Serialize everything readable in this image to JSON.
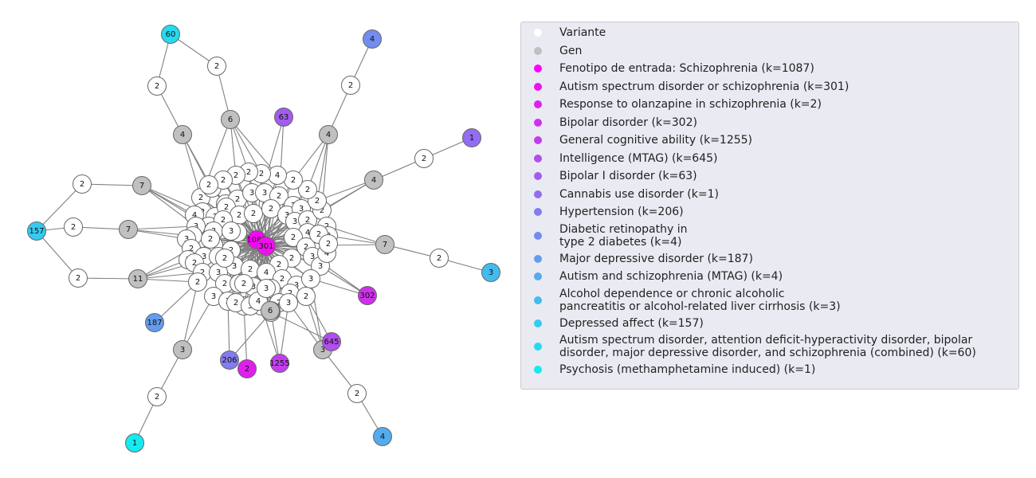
{
  "legend": {
    "items": [
      {
        "label": "Variante",
        "color": "#ffffff"
      },
      {
        "label": "Gen",
        "color": "#c0c0c0"
      },
      {
        "label": "Fenotipo de entrada: Schizophrenia (k=1087)",
        "color": "#ff00ff"
      },
      {
        "label": "Autism spectrum disorder or schizophrenia (k=301)",
        "color": "#ef10ef"
      },
      {
        "label": "Response to olanzapine in schizophrenia (k=2)",
        "color": "#e01fef"
      },
      {
        "label": "Bipolar disorder (k=302)",
        "color": "#d02fef"
      },
      {
        "label": "General cognitive ability (k=1255)",
        "color": "#c13eef"
      },
      {
        "label": "Intelligence (MTAG) (k=645)",
        "color": "#b14eef"
      },
      {
        "label": "Bipolar I disorder (k=63)",
        "color": "#a25def"
      },
      {
        "label": "Cannabis use disorder (k=1)",
        "color": "#926def"
      },
      {
        "label": "Hypertension (k=206)",
        "color": "#837cef"
      },
      {
        "label": "Diabetic retinopathy in\ntype 2 diabetes (k=4)",
        "color": "#738cef"
      },
      {
        "label": "Major depressive disorder (k=187)",
        "color": "#639cef"
      },
      {
        "label": "Autism and schizophrenia (MTAG) (k=4)",
        "color": "#54abef"
      },
      {
        "label": "Alcohol dependence or chronic alcoholic\npancreatitis or alcohol-related liver cirrhosis (k=3)",
        "color": "#44bbef"
      },
      {
        "label": "Depressed affect (k=157)",
        "color": "#35caef"
      },
      {
        "label": "Autism spectrum disorder, attention deficit-hyperactivity disorder, bipolar\ndisorder, major depressive disorder, and schizophrenia (combined) (k=60)",
        "color": "#25daef"
      },
      {
        "label": "Psychosis (methamphetamine induced) (k=1)",
        "color": "#15eaef"
      }
    ]
  },
  "graph": {
    "colors": {
      "variant": "#ffffff",
      "gene": "#c0c0c0",
      "schizophrenia": "#ff00ff",
      "asd_scz": "#ef10ef",
      "olanzapine": "#e01fef",
      "bipolar": "#d02fef",
      "cognitive": "#c13eef",
      "intelligence": "#b14eef",
      "bipolar1": "#a25def",
      "cannabis": "#926def",
      "hypertension": "#837cef",
      "retinopathy": "#738cef",
      "mdd": "#639cef",
      "autism_mtag": "#54abef",
      "alcohol": "#44bbef",
      "depressed": "#35caef",
      "cross_disorder": "#25daef",
      "psychosis": "#15eaef"
    },
    "cluster_labels": [
      "2",
      "2",
      "3",
      "2",
      "3",
      "3",
      "2",
      "2",
      "2",
      "2",
      "2",
      "2",
      "2",
      "2",
      "3",
      "3",
      "4",
      "2",
      "2",
      "2",
      "3",
      "2",
      "2",
      "2",
      "2",
      "2",
      "4",
      "2",
      "2",
      "2",
      "2",
      "2",
      "3",
      "3",
      "3",
      "3",
      "2",
      "2",
      "2",
      "4",
      "2",
      "3",
      "3",
      "2",
      "2",
      "2",
      "2",
      "3",
      "3",
      "4",
      "3",
      "2",
      "2",
      "3",
      "2",
      "3",
      "2",
      "4",
      "2",
      "3",
      "3",
      "2",
      "2",
      "2",
      "3",
      "2",
      "3",
      "3",
      "2",
      "2",
      "2",
      "3",
      "2",
      "2",
      "3",
      "2",
      "3",
      "2",
      "2",
      "3",
      "4",
      "3",
      "2",
      "2",
      "2",
      "2"
    ],
    "outer_variant_labels": [
      "2",
      "2",
      "2",
      "2",
      "2",
      "2",
      "2",
      "2",
      "2",
      "2",
      "2"
    ],
    "gene_labels": [
      "6",
      "4",
      "4",
      "4",
      "7",
      "7",
      "7",
      "11",
      "3",
      "3",
      "6"
    ],
    "phenotype_labels": [
      "1087",
      "301",
      "302",
      "1255",
      "645",
      "63",
      "1",
      "206",
      "187",
      "4",
      "3",
      "157",
      "60",
      "1",
      "2",
      "4"
    ]
  }
}
